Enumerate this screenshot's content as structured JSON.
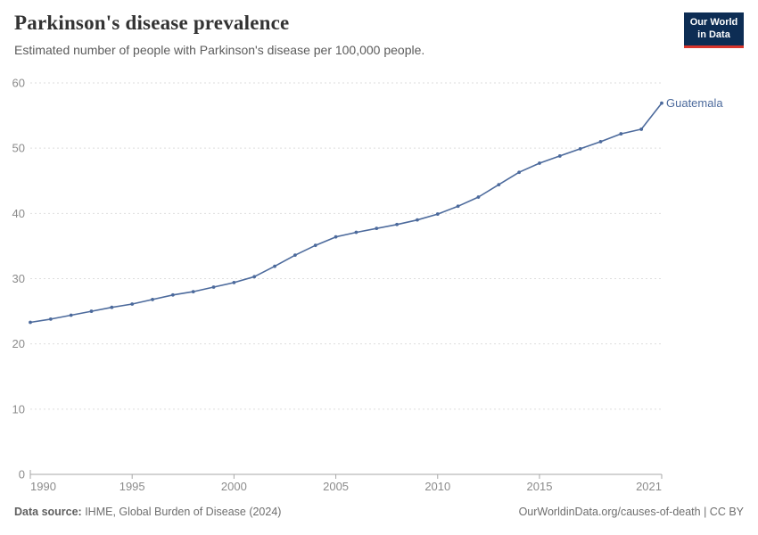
{
  "header": {
    "title": "Parkinson's disease prevalence",
    "subtitle": "Estimated number of people with Parkinson's disease per 100,000 people.",
    "logo": {
      "line1": "Our World",
      "line2": "in Data"
    }
  },
  "chart_data": {
    "type": "line",
    "title": "Parkinson's disease prevalence",
    "subtitle": "Estimated number of people with Parkinson's disease per 100,000 people.",
    "x": [
      1990,
      1991,
      1992,
      1993,
      1994,
      1995,
      1996,
      1997,
      1998,
      1999,
      2000,
      2001,
      2002,
      2003,
      2004,
      2005,
      2006,
      2007,
      2008,
      2009,
      2010,
      2011,
      2012,
      2013,
      2014,
      2015,
      2016,
      2017,
      2018,
      2019,
      2020,
      2021
    ],
    "series": [
      {
        "name": "Guatemala",
        "values": [
          23.3,
          23.8,
          24.4,
          25.0,
          25.6,
          26.1,
          26.8,
          27.5,
          28.0,
          28.7,
          29.4,
          30.3,
          31.9,
          33.6,
          35.1,
          36.4,
          37.1,
          37.7,
          38.3,
          39.0,
          39.9,
          41.1,
          42.5,
          44.4,
          46.3,
          47.7,
          48.8,
          49.9,
          51.0,
          52.2,
          52.9,
          56.9
        ]
      }
    ],
    "end_label": "Guatemala",
    "xlabel": "",
    "ylabel": "",
    "ylim": [
      0,
      60
    ],
    "yticks": [
      0,
      10,
      20,
      30,
      40,
      50,
      60
    ],
    "xticks": [
      1990,
      1995,
      2000,
      2005,
      2010,
      2015,
      2021
    ],
    "grid": "horizontal-dashed",
    "legend_position": "end-of-line"
  },
  "colors": {
    "line": "#4c6a9c",
    "end_label": "#4c6a9c",
    "grid": "#dedede",
    "axis": "#a7a7a7",
    "axis_text": "#8b8b8b",
    "title": "#333333",
    "subtitle": "#5b5b5b",
    "footer_text": "#6e6e6e",
    "logo_bg": "#0d2d54",
    "logo_red": "#d8352c"
  },
  "footer": {
    "source_label": "Data source:",
    "source_value": " IHME, Global Burden of Disease (2024)",
    "credit": "OurWorldinData.org/causes-of-death | CC BY"
  }
}
